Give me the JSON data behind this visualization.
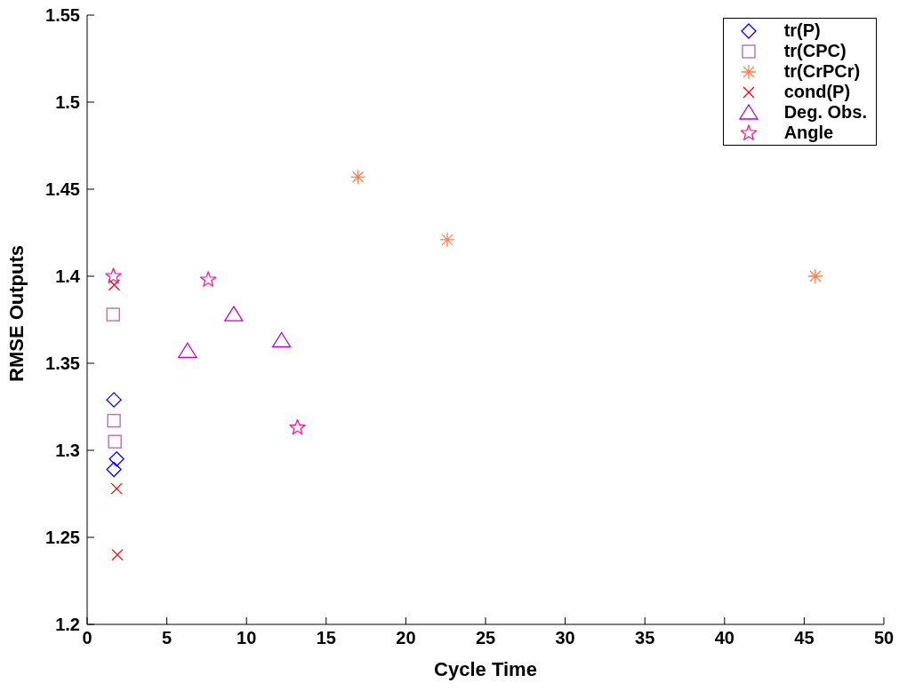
{
  "chart_data": {
    "type": "scatter",
    "xlabel": "Cycle Time",
    "ylabel": "RMSE Outputs",
    "xlim": [
      0,
      50
    ],
    "xticks": [
      0,
      5,
      10,
      15,
      20,
      25,
      30,
      35,
      40,
      45,
      50
    ],
    "ylim": [
      1.2,
      1.55
    ],
    "yticks": [
      1.2,
      1.25,
      1.3,
      1.35,
      1.4,
      1.45,
      1.5,
      1.55
    ],
    "grid": false,
    "legend": "top right",
    "series": [
      {
        "name": "tr(P)",
        "color": "#0000ff",
        "marker": "diamond",
        "x": [
          1.68,
          1.85,
          1.68
        ],
        "values": [
          1.329,
          1.295,
          1.289
        ]
      },
      {
        "name": "tr(CPC)",
        "color": "#b266b2",
        "marker": "square",
        "x": [
          1.63,
          1.68,
          1.74
        ],
        "values": [
          1.378,
          1.317,
          1.305
        ]
      },
      {
        "name": "tr(CrPCr)",
        "color": "#ff7f50",
        "x": [
          17.0,
          22.6,
          45.7
        ],
        "values": [
          1.457,
          1.421,
          1.4
        ]
      },
      {
        "name": "cond(P)",
        "color": "#ff0000",
        "marker": "cross",
        "x": [
          1.7,
          1.85,
          1.9
        ],
        "values": [
          1.395,
          1.278,
          1.24
        ]
      },
      {
        "name": "Deg. Obs.",
        "color": "#c000c0",
        "marker": "triangle",
        "x": [
          6.3,
          9.2,
          12.2
        ],
        "values": [
          1.357,
          1.378,
          1.363
        ]
      },
      {
        "name": "Angle",
        "color": "#ff1493",
        "marker": "star",
        "x": [
          1.65,
          7.6,
          13.2
        ],
        "values": [
          1.4,
          1.398,
          1.313
        ]
      }
    ]
  }
}
